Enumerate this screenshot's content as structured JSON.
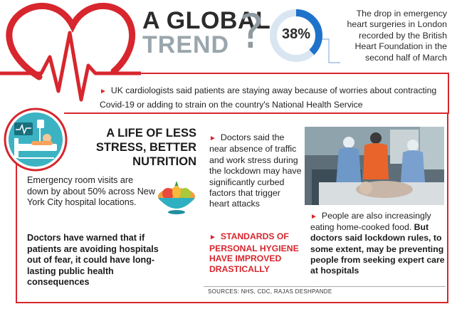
{
  "header": {
    "title_line1": "A GLOBAL",
    "title_line2": "TREND",
    "question_mark": "?",
    "percent": "38%",
    "percent_value": 0.38,
    "stat_description": "The drop in emergency heart surgeries in London recorded by the British Heart Foundation in the second half of March"
  },
  "uk_note": "UK cardiologists said patients are staying away because of worries about contracting Covid-19 or adding to strain on the country's National Health Service",
  "section": {
    "title": "A LIFE OF LESS STRESS, BETTER NUTRITION",
    "er_text": "Emergency room visits are down by about 50% across New York City hospital locations.",
    "er_bold": "Doctors have warned that if patients are avoiding hospitals out of fear, it could have long-lasting public health consequences",
    "doctors_text": "Doctors said the near absence of traffic and work stress during the lockdown may have significantly curbed factors that trigger heart attacks",
    "hygiene_text": "STANDARDS OF PERSONAL HYGIENE HAVE IMPROVED DRASTICALLY",
    "people_text": "People are also increasingly eating home-cooked food.",
    "people_bold": "But doctors said lockdown rules, to some extent, may be preventing people from seeking expert care at hospitals"
  },
  "sources": "SOURCES: NHS, CDC, RAJAS DESHPANDE",
  "colors": {
    "accent_red": "#d7262d",
    "blue": "#1f72c9",
    "gray": "#9aa6ad"
  },
  "icons": [
    "heartbeat-heart-icon",
    "hospital-bed-icon",
    "fruit-bowl-icon",
    "bullet-arrow-icon"
  ]
}
